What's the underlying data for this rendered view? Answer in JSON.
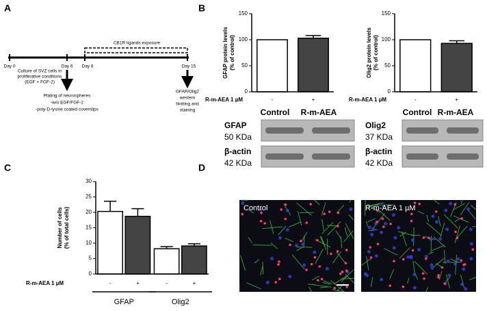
{
  "panel_labels": [
    "A",
    "B",
    "C",
    "D"
  ],
  "timeline": {
    "days": [
      "Day 0",
      "Day 6",
      "Day 8",
      "Day 15"
    ],
    "exposure": "CB1R ligands exposure",
    "culture_note": [
      "Culture of SVZ cells in",
      "proliferative conditions",
      "(EGF + FGF-2)"
    ],
    "plating_note": [
      "Plating of neurospheres",
      "-w/o EGF/FGF-2",
      "-poly-D-lysine coated coverslips"
    ],
    "endpoint_note": [
      "GFAP/Olig2",
      "western",
      "blotting and",
      "staining"
    ]
  },
  "blots": [
    {
      "lanes": [
        "Control",
        "R-m-AEA"
      ],
      "rows": [
        {
          "protein": "GFAP",
          "size": "50 KDa"
        },
        {
          "protein": "β-actin",
          "size": "42 KDa"
        }
      ]
    },
    {
      "lanes": [
        "Control",
        "R-m-AEA"
      ],
      "rows": [
        {
          "protein": "Olig2",
          "size": "37 KDa"
        },
        {
          "protein": "β-actin",
          "size": "42 KDa"
        }
      ]
    }
  ],
  "micrographs": [
    {
      "label": "Control"
    },
    {
      "label": "R-m-AEA 1 µM"
    }
  ],
  "chart_data": [
    {
      "type": "bar",
      "ylabel": [
        "GFAP protein levels",
        "(% of control)"
      ],
      "xlabel": "R-m-AEA 1 µM",
      "categories": [
        "-",
        "+"
      ],
      "values": [
        100,
        103
      ],
      "errors": [
        null,
        5
      ],
      "colors": [
        "#ffffff",
        "#444444"
      ],
      "ylim": [
        0,
        150
      ],
      "yticks": [
        0,
        50,
        100,
        150
      ]
    },
    {
      "type": "bar",
      "ylabel": [
        "Olig2 protein levels",
        "(% of control)"
      ],
      "xlabel": "R-m-AEA 1 µM",
      "categories": [
        "-",
        "+"
      ],
      "values": [
        100,
        93
      ],
      "errors": [
        null,
        5
      ],
      "colors": [
        "#ffffff",
        "#444444"
      ],
      "ylim": [
        0,
        150
      ],
      "yticks": [
        0,
        50,
        100,
        150
      ]
    },
    {
      "type": "bar",
      "ylabel": [
        "Number of cells",
        "(% of total cells)"
      ],
      "xlabel": "R-m-AEA 1 µM",
      "categories": [
        "GFAP",
        "Olig2"
      ],
      "series": [
        {
          "name": "-",
          "color": "#ffffff",
          "values": [
            20.3,
            8.2
          ],
          "errors": [
            3.3,
            0.7
          ]
        },
        {
          "name": "+",
          "color": "#444444",
          "values": [
            18.7,
            9.1
          ],
          "errors": [
            2.5,
            0.7
          ]
        }
      ],
      "ylim": [
        0,
        30
      ],
      "yticks": [
        0,
        5,
        10,
        15,
        20,
        25,
        30
      ]
    }
  ]
}
